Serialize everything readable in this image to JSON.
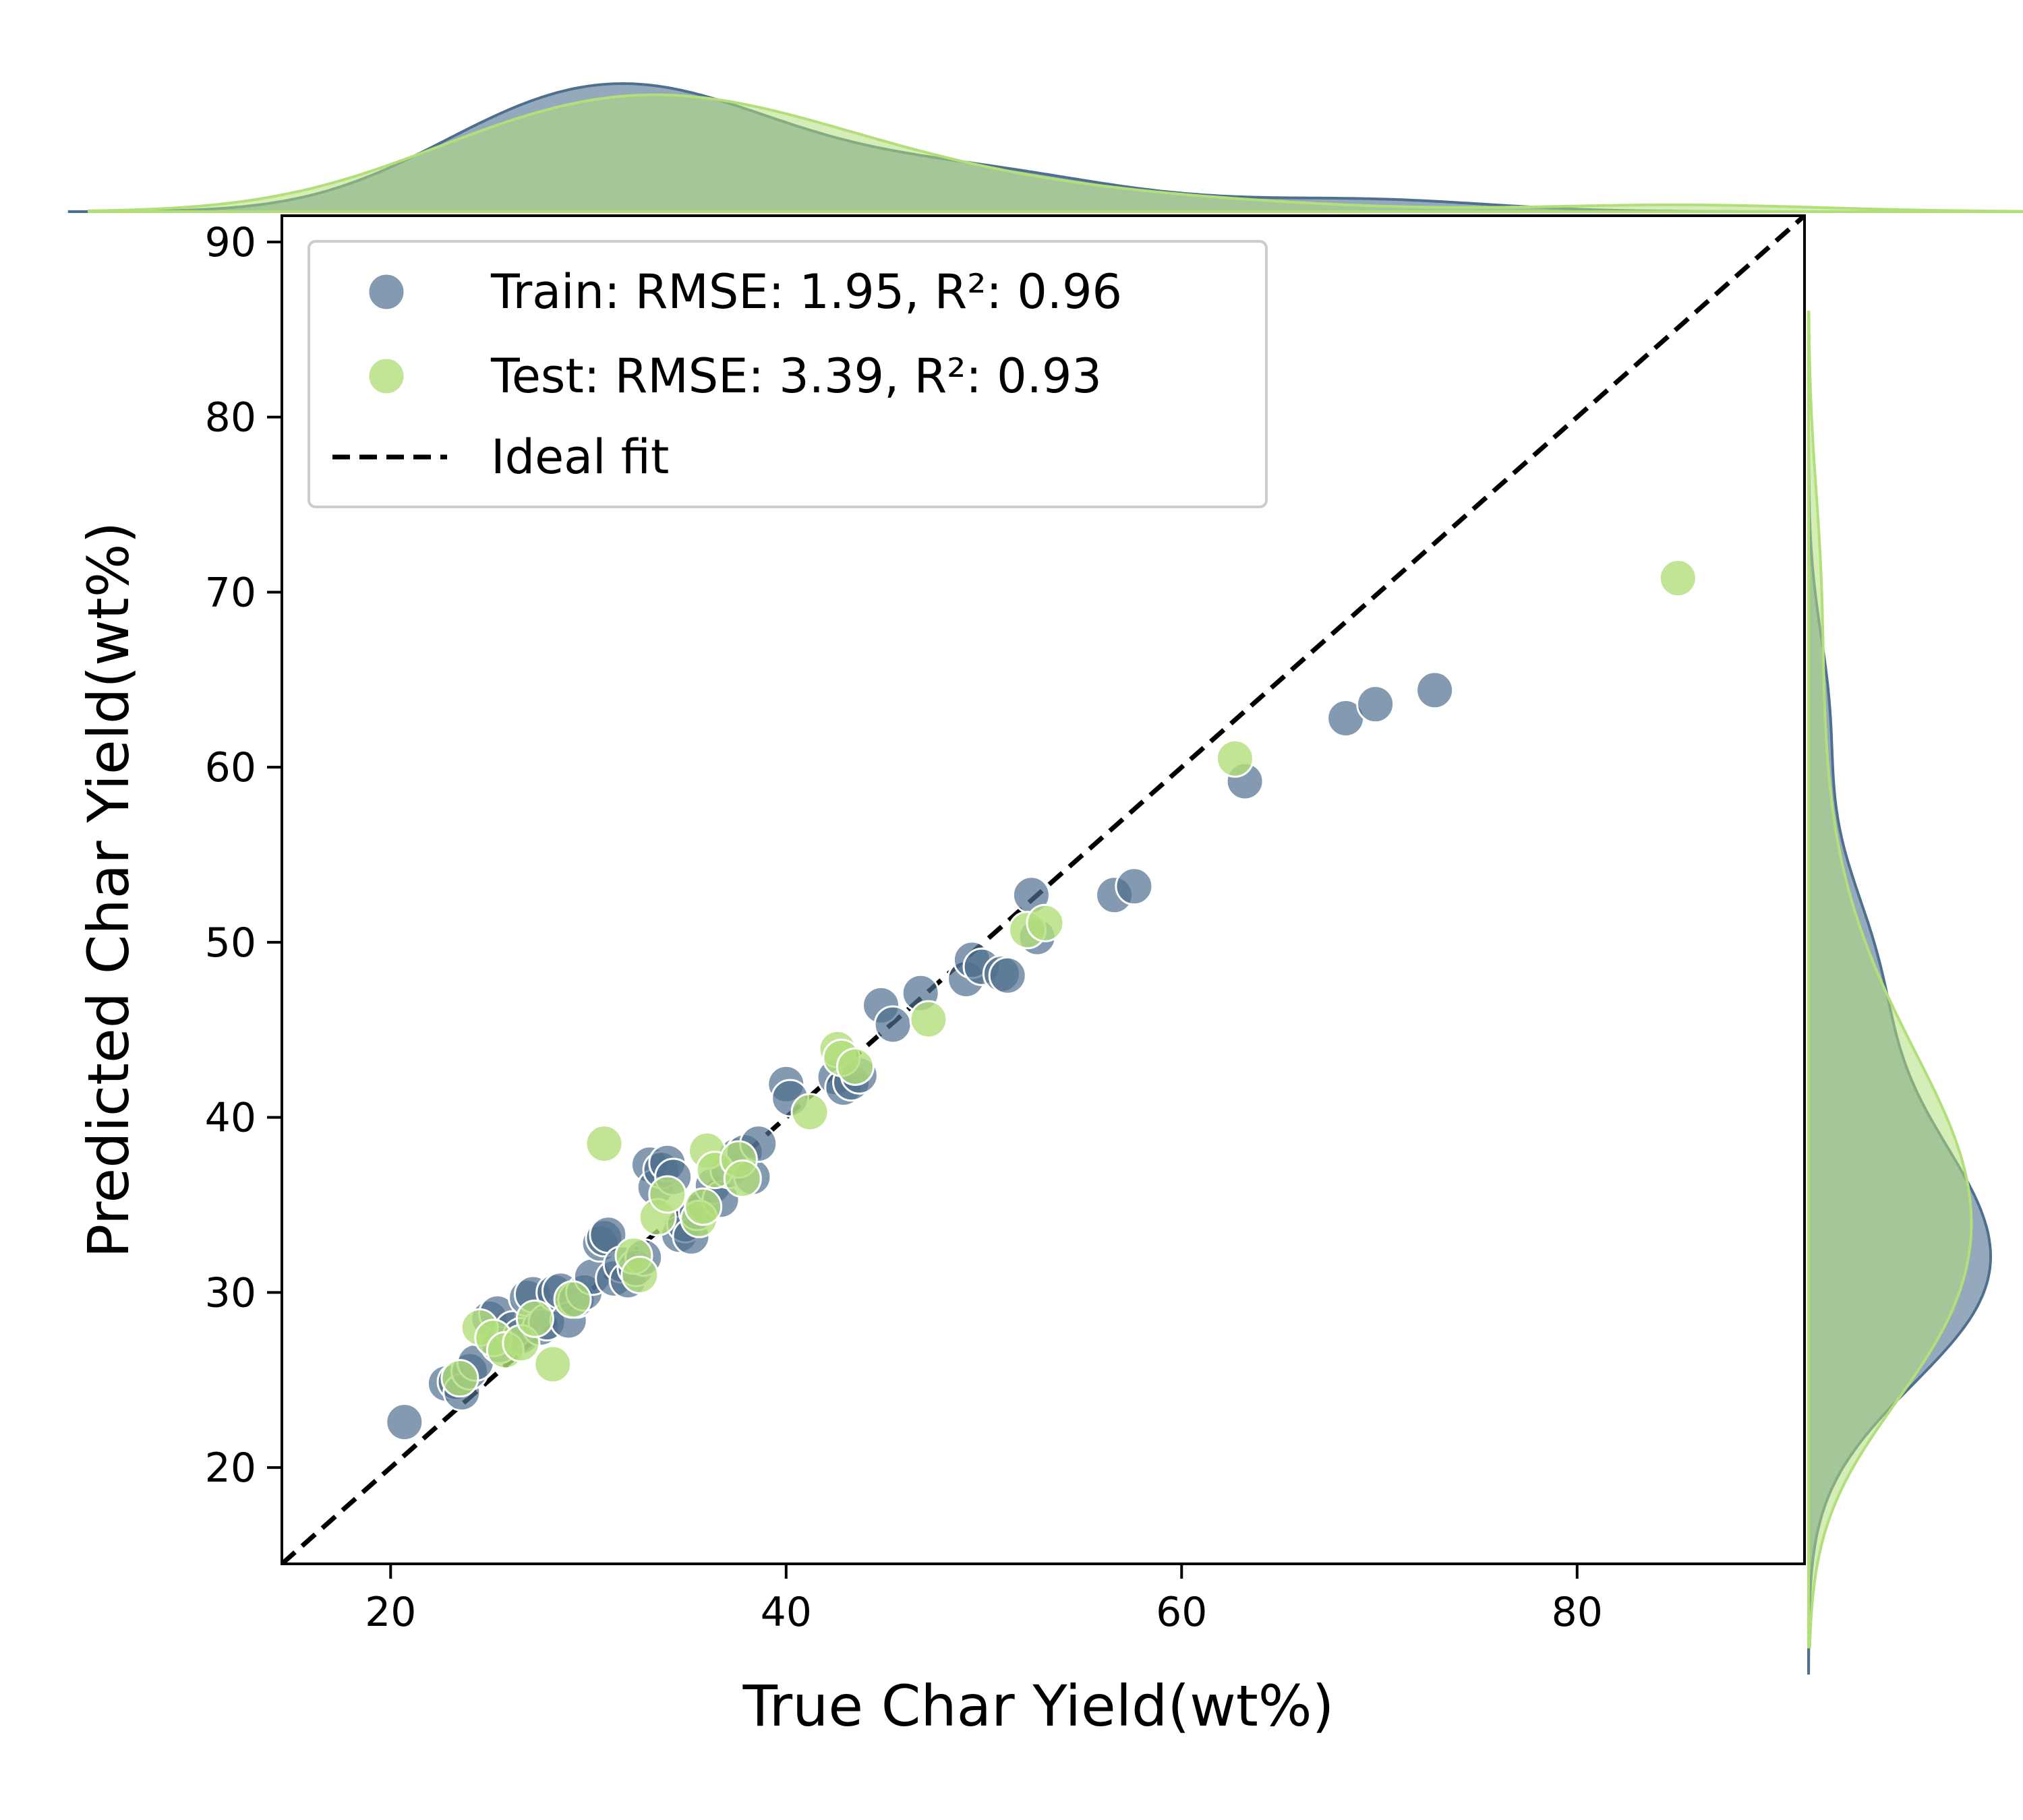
{
  "chart_data": {
    "type": "scatter",
    "xlabel": "True Char Yield(wt%)",
    "ylabel": "Predicted Char Yield(wt%)",
    "xlim": [
      14.5,
      91.5
    ],
    "ylim": [
      14.5,
      91.5
    ],
    "x_ticks": [
      20,
      40,
      60,
      80
    ],
    "y_ticks": [
      20,
      30,
      40,
      50,
      60,
      70,
      80,
      90
    ],
    "grid": false,
    "legend_position": "top-left",
    "marginals": "kde",
    "series": [
      {
        "name": "Train: RMSE: 1.95, R²: 0.96",
        "color": "#4f6f8f",
        "points": [
          [
            20.7,
            22.6
          ],
          [
            22.8,
            24.8
          ],
          [
            23.3,
            24.9
          ],
          [
            23.6,
            24.3
          ],
          [
            24.0,
            25.5
          ],
          [
            24.3,
            26.0
          ],
          [
            25.0,
            28.5
          ],
          [
            25.4,
            28.8
          ],
          [
            25.5,
            27.0
          ],
          [
            26.2,
            27.9
          ],
          [
            26.6,
            27.5
          ],
          [
            26.9,
            29.7
          ],
          [
            27.2,
            29.9
          ],
          [
            27.6,
            28.0
          ],
          [
            27.9,
            28.3
          ],
          [
            28.3,
            30.0
          ],
          [
            28.6,
            30.1
          ],
          [
            29.0,
            28.4
          ],
          [
            29.4,
            29.6
          ],
          [
            29.8,
            30.0
          ],
          [
            30.2,
            30.9
          ],
          [
            30.6,
            32.8
          ],
          [
            30.8,
            33.1
          ],
          [
            31.0,
            33.3
          ],
          [
            31.3,
            30.8
          ],
          [
            31.7,
            31.6
          ],
          [
            32.0,
            30.7
          ],
          [
            32.4,
            31.4
          ],
          [
            32.8,
            32.0
          ],
          [
            33.1,
            37.3
          ],
          [
            33.4,
            36.0
          ],
          [
            33.7,
            37.0
          ],
          [
            34.0,
            37.4
          ],
          [
            34.3,
            36.6
          ],
          [
            34.6,
            33.3
          ],
          [
            34.9,
            33.9
          ],
          [
            35.2,
            33.2
          ],
          [
            35.5,
            34.6
          ],
          [
            35.9,
            35.0
          ],
          [
            36.3,
            36.1
          ],
          [
            36.7,
            35.3
          ],
          [
            37.1,
            37.0
          ],
          [
            37.5,
            37.8
          ],
          [
            37.9,
            38.0
          ],
          [
            38.3,
            36.6
          ],
          [
            38.6,
            38.5
          ],
          [
            40.0,
            41.9
          ],
          [
            40.2,
            41.1
          ],
          [
            42.5,
            42.3
          ],
          [
            42.9,
            41.7
          ],
          [
            43.3,
            42.0
          ],
          [
            43.7,
            42.4
          ],
          [
            44.8,
            46.4
          ],
          [
            45.4,
            45.3
          ],
          [
            46.8,
            47.1
          ],
          [
            49.1,
            47.9
          ],
          [
            49.4,
            49.0
          ],
          [
            49.9,
            48.6
          ],
          [
            50.9,
            48.2
          ],
          [
            51.2,
            48.1
          ],
          [
            52.4,
            52.7
          ],
          [
            52.7,
            50.3
          ],
          [
            56.6,
            52.7
          ],
          [
            57.6,
            53.2
          ],
          [
            63.2,
            59.2
          ],
          [
            68.3,
            62.8
          ],
          [
            69.8,
            63.6
          ],
          [
            72.8,
            64.4
          ]
        ]
      },
      {
        "name": "Test: RMSE: 3.39, R²: 0.93",
        "color": "#b2df7a",
        "points": [
          [
            23.5,
            25.1
          ],
          [
            24.5,
            28.0
          ],
          [
            25.2,
            27.4
          ],
          [
            25.8,
            26.7
          ],
          [
            26.6,
            27.1
          ],
          [
            27.3,
            28.5
          ],
          [
            28.2,
            25.9
          ],
          [
            29.2,
            29.6
          ],
          [
            30.8,
            38.5
          ],
          [
            32.3,
            32.1
          ],
          [
            32.6,
            31.0
          ],
          [
            33.5,
            34.3
          ],
          [
            34.0,
            35.6
          ],
          [
            35.6,
            34.2
          ],
          [
            35.8,
            34.9
          ],
          [
            36.0,
            38.1
          ],
          [
            36.4,
            37.0
          ],
          [
            37.6,
            37.6
          ],
          [
            37.8,
            36.5
          ],
          [
            41.2,
            40.3
          ],
          [
            42.6,
            43.9
          ],
          [
            42.8,
            43.4
          ],
          [
            43.5,
            42.9
          ],
          [
            47.2,
            45.6
          ],
          [
            52.2,
            50.7
          ],
          [
            53.1,
            51.1
          ],
          [
            62.7,
            60.5
          ],
          [
            85.1,
            70.8
          ]
        ]
      }
    ],
    "reference_line": {
      "name": "Ideal fit",
      "style": "dashed",
      "color": "#000000"
    }
  }
}
